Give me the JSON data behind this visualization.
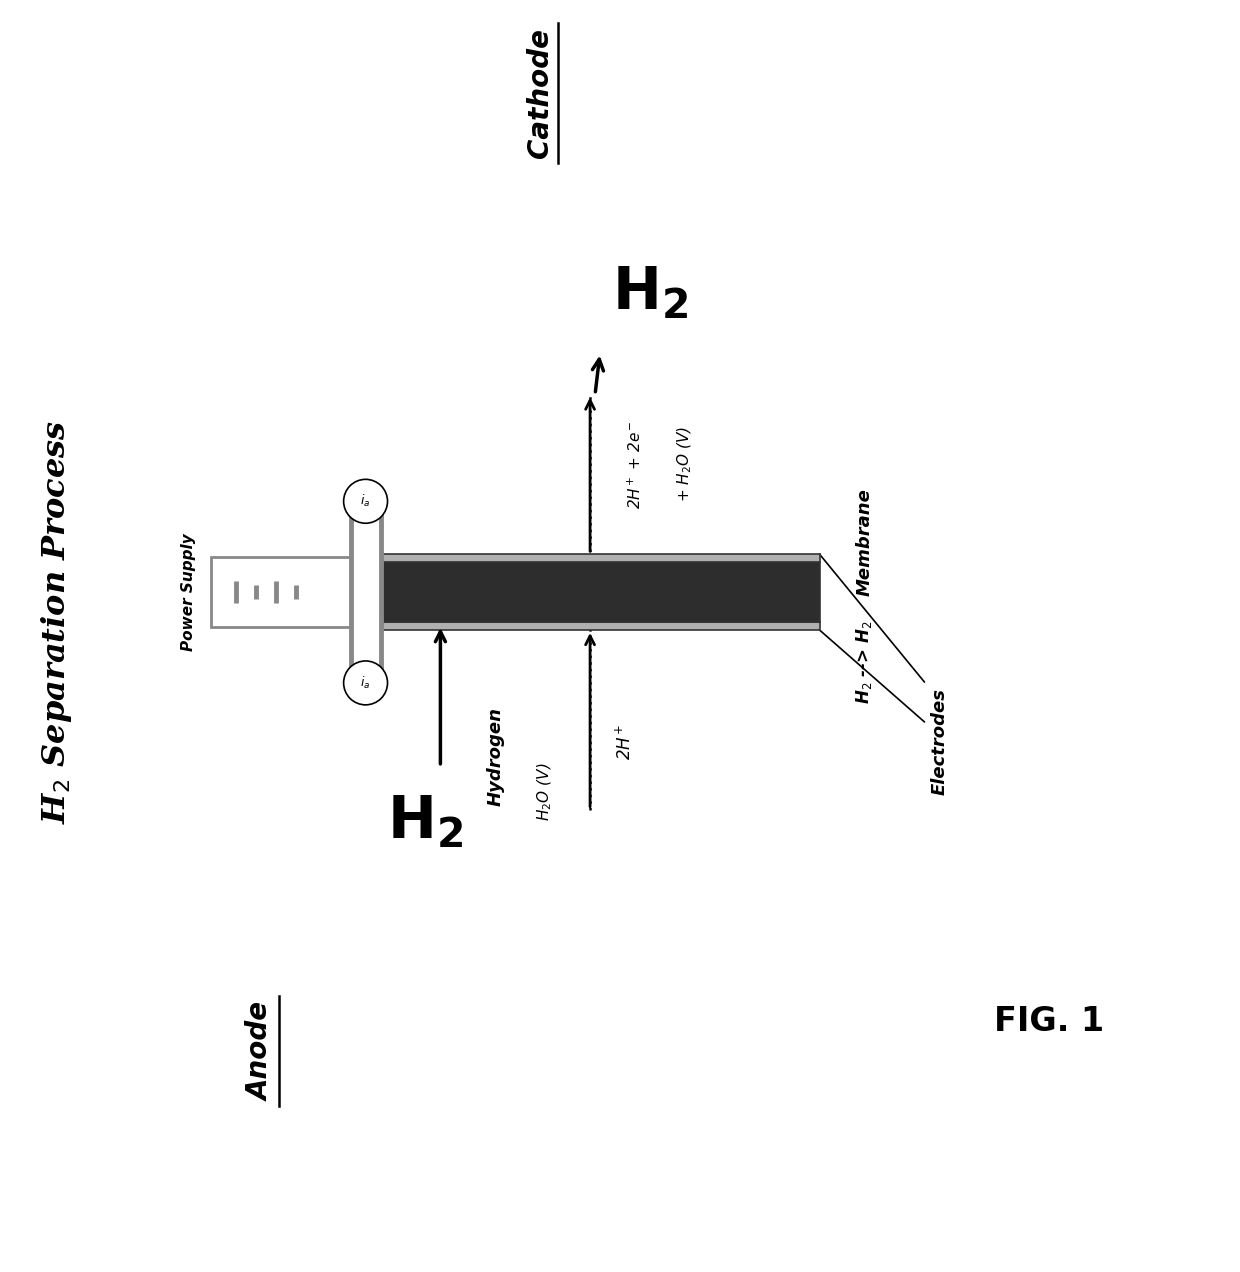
{
  "title": "H$_2$ Separation Process",
  "fig_label": "FIG. 1",
  "bg_color": "#ffffff",
  "membrane_dark": "#2d2d2d",
  "membrane_light": "#b0b0b0",
  "membrane_mid": "#555555",
  "power_supply_color": "#888888",
  "arrow_color": "#111111",
  "anode_label": "Anode",
  "cathode_label": "Cathode",
  "hydrogen_label": "Hydrogen",
  "membrane_label": "Membrane",
  "electrodes_label": "Electrodes",
  "power_supply_label": "Power Supply",
  "h2_to_h2_label": "H$_2$ --> H$_2$",
  "reaction_cathode_1": "2H$^+$ + 2e$^-$",
  "reaction_cathode_2": "+ H$_2$O (V)"
}
